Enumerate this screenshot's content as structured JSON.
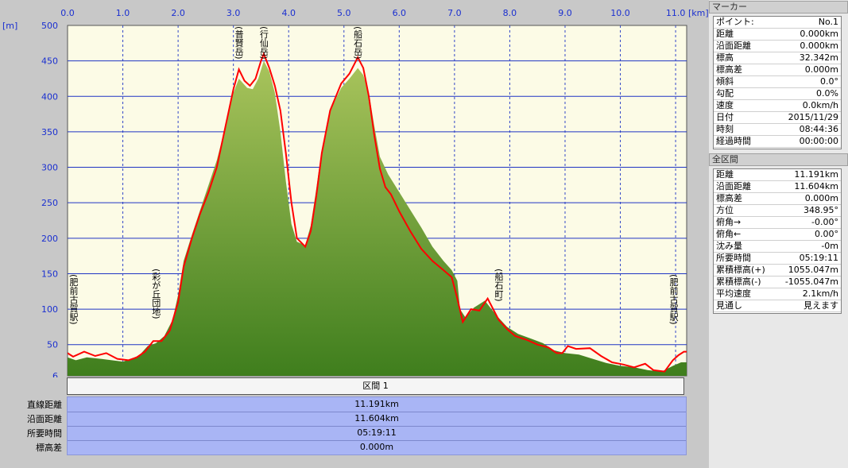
{
  "chart": {
    "x_unit": "[km]",
    "y_unit": "[m]",
    "x_ticks": [
      "0.0",
      "1.0",
      "2.0",
      "3.0",
      "4.0",
      "5.0",
      "6.0",
      "7.0",
      "8.0",
      "9.0",
      "10.0",
      "11.0"
    ],
    "y_ticks": [
      "500",
      "450",
      "400",
      "350",
      "300",
      "250",
      "200",
      "150",
      "100",
      "50",
      "6"
    ],
    "places": [
      {
        "name": "(肥前古賀駅)",
        "km": 0.05
      },
      {
        "name": "(彩が丘団地)",
        "km": 1.6
      },
      {
        "name": "(普賢岳)",
        "km": 3.1
      },
      {
        "name": "(行仙岳)",
        "km": 3.55
      },
      {
        "name": "(船石岳)",
        "km": 5.25
      },
      {
        "name": "(船石町)",
        "km": 7.8
      },
      {
        "name": "(肥前古賀駅)",
        "km": 11.05
      }
    ],
    "colors": {
      "plot_bg": "#fcfbe6",
      "grid": "#1f34c4",
      "fill_top": "#a9c45c",
      "fill_bottom": "#3f7e1d",
      "route": "#ff0000"
    }
  },
  "chart_data": {
    "type": "area",
    "xlabel": "[km]",
    "ylabel": "[m]",
    "xlim": [
      0,
      11.2
    ],
    "ylim": [
      6,
      500
    ],
    "series": [
      {
        "values": [
          [
            0,
            32
          ],
          [
            0.15,
            28
          ],
          [
            0.35,
            32
          ],
          [
            0.6,
            30
          ],
          [
            0.8,
            28
          ],
          [
            1.0,
            26
          ],
          [
            1.15,
            30
          ],
          [
            1.3,
            35
          ],
          [
            1.45,
            48
          ],
          [
            1.6,
            52
          ],
          [
            1.75,
            62
          ],
          [
            1.9,
            85
          ],
          [
            2.0,
            120
          ],
          [
            2.1,
            168
          ],
          [
            2.25,
            205
          ],
          [
            2.4,
            240
          ],
          [
            2.55,
            275
          ],
          [
            2.7,
            310
          ],
          [
            2.85,
            355
          ],
          [
            3.0,
            405
          ],
          [
            3.1,
            425
          ],
          [
            3.25,
            412
          ],
          [
            3.35,
            410
          ],
          [
            3.45,
            425
          ],
          [
            3.55,
            450
          ],
          [
            3.65,
            435
          ],
          [
            3.75,
            405
          ],
          [
            3.85,
            350
          ],
          [
            3.95,
            280
          ],
          [
            4.05,
            220
          ],
          [
            4.15,
            195
          ],
          [
            4.3,
            190
          ],
          [
            4.4,
            218
          ],
          [
            4.5,
            270
          ],
          [
            4.6,
            325
          ],
          [
            4.75,
            380
          ],
          [
            4.95,
            412
          ],
          [
            5.1,
            425
          ],
          [
            5.25,
            440
          ],
          [
            5.35,
            430
          ],
          [
            5.45,
            405
          ],
          [
            5.55,
            358
          ],
          [
            5.65,
            315
          ],
          [
            5.8,
            290
          ],
          [
            6.0,
            265
          ],
          [
            6.2,
            240
          ],
          [
            6.4,
            215
          ],
          [
            6.6,
            188
          ],
          [
            6.8,
            168
          ],
          [
            6.95,
            155
          ],
          [
            7.05,
            140
          ],
          [
            7.1,
            100
          ],
          [
            7.2,
            88
          ],
          [
            7.35,
            102
          ],
          [
            7.55,
            112
          ],
          [
            7.75,
            92
          ],
          [
            7.95,
            75
          ],
          [
            8.15,
            65
          ],
          [
            8.4,
            58
          ],
          [
            8.6,
            52
          ],
          [
            8.8,
            42
          ],
          [
            9.0,
            38
          ],
          [
            9.25,
            36
          ],
          [
            9.5,
            30
          ],
          [
            9.75,
            24
          ],
          [
            10.0,
            20
          ],
          [
            10.25,
            18
          ],
          [
            10.5,
            14
          ],
          [
            10.75,
            12
          ],
          [
            10.95,
            20
          ],
          [
            11.1,
            25
          ],
          [
            11.2,
            25
          ]
        ]
      },
      {
        "values": [
          [
            0,
            38
          ],
          [
            0.1,
            33
          ],
          [
            0.3,
            40
          ],
          [
            0.5,
            34
          ],
          [
            0.7,
            38
          ],
          [
            0.9,
            30
          ],
          [
            1.1,
            28
          ],
          [
            1.25,
            32
          ],
          [
            1.4,
            40
          ],
          [
            1.55,
            55
          ],
          [
            1.7,
            55
          ],
          [
            1.85,
            70
          ],
          [
            2.0,
            110
          ],
          [
            2.1,
            160
          ],
          [
            2.25,
            200
          ],
          [
            2.4,
            235
          ],
          [
            2.55,
            265
          ],
          [
            2.7,
            300
          ],
          [
            2.85,
            355
          ],
          [
            3.0,
            410
          ],
          [
            3.1,
            438
          ],
          [
            3.2,
            422
          ],
          [
            3.3,
            415
          ],
          [
            3.4,
            425
          ],
          [
            3.5,
            450
          ],
          [
            3.55,
            460
          ],
          [
            3.65,
            440
          ],
          [
            3.75,
            415
          ],
          [
            3.85,
            380
          ],
          [
            3.95,
            320
          ],
          [
            4.05,
            250
          ],
          [
            4.15,
            200
          ],
          [
            4.3,
            188
          ],
          [
            4.4,
            210
          ],
          [
            4.5,
            260
          ],
          [
            4.6,
            320
          ],
          [
            4.75,
            380
          ],
          [
            4.95,
            418
          ],
          [
            5.1,
            432
          ],
          [
            5.25,
            455
          ],
          [
            5.35,
            440
          ],
          [
            5.45,
            400
          ],
          [
            5.55,
            345
          ],
          [
            5.65,
            298
          ],
          [
            5.75,
            272
          ],
          [
            5.85,
            262
          ],
          [
            6.0,
            238
          ],
          [
            6.2,
            210
          ],
          [
            6.4,
            185
          ],
          [
            6.6,
            168
          ],
          [
            6.8,
            155
          ],
          [
            6.95,
            145
          ],
          [
            7.05,
            115
          ],
          [
            7.15,
            82
          ],
          [
            7.3,
            100
          ],
          [
            7.45,
            98
          ],
          [
            7.6,
            115
          ],
          [
            7.8,
            85
          ],
          [
            7.95,
            72
          ],
          [
            8.1,
            62
          ],
          [
            8.3,
            57
          ],
          [
            8.5,
            50
          ],
          [
            8.7,
            46
          ],
          [
            8.85,
            38
          ],
          [
            8.95,
            38
          ],
          [
            9.05,
            48
          ],
          [
            9.2,
            44
          ],
          [
            9.45,
            45
          ],
          [
            9.65,
            34
          ],
          [
            9.85,
            25
          ],
          [
            10.05,
            22
          ],
          [
            10.25,
            18
          ],
          [
            10.45,
            23
          ],
          [
            10.6,
            14
          ],
          [
            10.8,
            12
          ],
          [
            10.95,
            28
          ],
          [
            11.05,
            35
          ],
          [
            11.15,
            40
          ],
          [
            11.2,
            40
          ]
        ]
      }
    ]
  },
  "section": {
    "header": "区間 1"
  },
  "summary": [
    {
      "label": "直線距離",
      "value": "11.191km"
    },
    {
      "label": "沿面距離",
      "value": "11.604km"
    },
    {
      "label": "所要時間",
      "value": "05:19:11"
    },
    {
      "label": "標高差",
      "value": "0.000m"
    }
  ],
  "marker_panel": {
    "title": "マーカー",
    "rows": [
      {
        "label": "ポイント:",
        "value": "No.1"
      },
      {
        "label": "距離",
        "value": "0.000km"
      },
      {
        "label": "沿面距離",
        "value": "0.000km"
      },
      {
        "label": "標高",
        "value": "32.342m"
      },
      {
        "label": "標高差",
        "value": "0.000m"
      },
      {
        "label": "傾斜",
        "value": "0.0°"
      },
      {
        "label": "勾配",
        "value": "0.0%"
      },
      {
        "label": "速度",
        "value": "0.0km/h"
      },
      {
        "label": "日付",
        "value": "2015/11/29"
      },
      {
        "label": "時刻",
        "value": "08:44:36"
      },
      {
        "label": "経過時間",
        "value": "00:00:00"
      }
    ]
  },
  "total_panel": {
    "title": "全区間",
    "rows": [
      {
        "label": "距離",
        "value": "11.191km"
      },
      {
        "label": "沿面距離",
        "value": "11.604km"
      },
      {
        "label": "標高差",
        "value": "0.000m"
      },
      {
        "label": "方位",
        "value": "348.95°"
      },
      {
        "label": "俯角→",
        "value": "-0.00°"
      },
      {
        "label": "俯角←",
        "value": "0.00°"
      },
      {
        "label": "沈み量",
        "value": "-0m"
      },
      {
        "label": "所要時間",
        "value": "05:19:11"
      },
      {
        "label": "累積標高(+)",
        "value": "1055.047m"
      },
      {
        "label": "累積標高(-)",
        "value": "-1055.047m"
      },
      {
        "label": "平均速度",
        "value": "2.1km/h"
      },
      {
        "label": "見通し",
        "value": "見えます"
      }
    ]
  }
}
